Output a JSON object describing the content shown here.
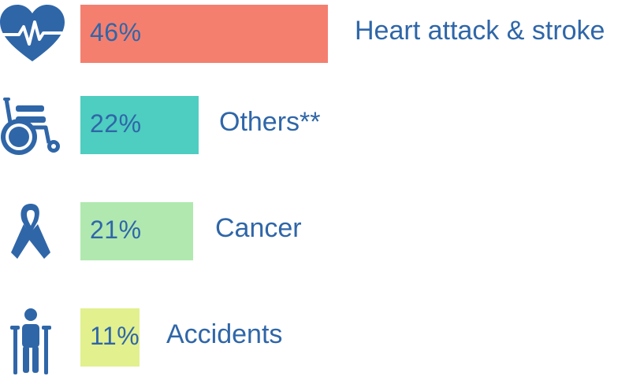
{
  "colors": {
    "text": "#2f66a8",
    "icon": "#2f66a8",
    "bars": [
      "#f47f6f",
      "#4ecdc1",
      "#b0e8b0",
      "#e2f08e"
    ]
  },
  "chart_data": {
    "type": "bar",
    "orientation": "horizontal",
    "categories": [
      "Heart attack & stroke",
      "Others**",
      "Cancer",
      "Accidents"
    ],
    "values": [
      46,
      22,
      21,
      11
    ],
    "value_labels": [
      "46%",
      "22%",
      "21%",
      "11%"
    ],
    "icons": [
      "heartbeat-icon",
      "wheelchair-icon",
      "ribbon-icon",
      "crutches-person-icon"
    ],
    "xlim": [
      0,
      100
    ],
    "grid": false,
    "legend": "none"
  }
}
